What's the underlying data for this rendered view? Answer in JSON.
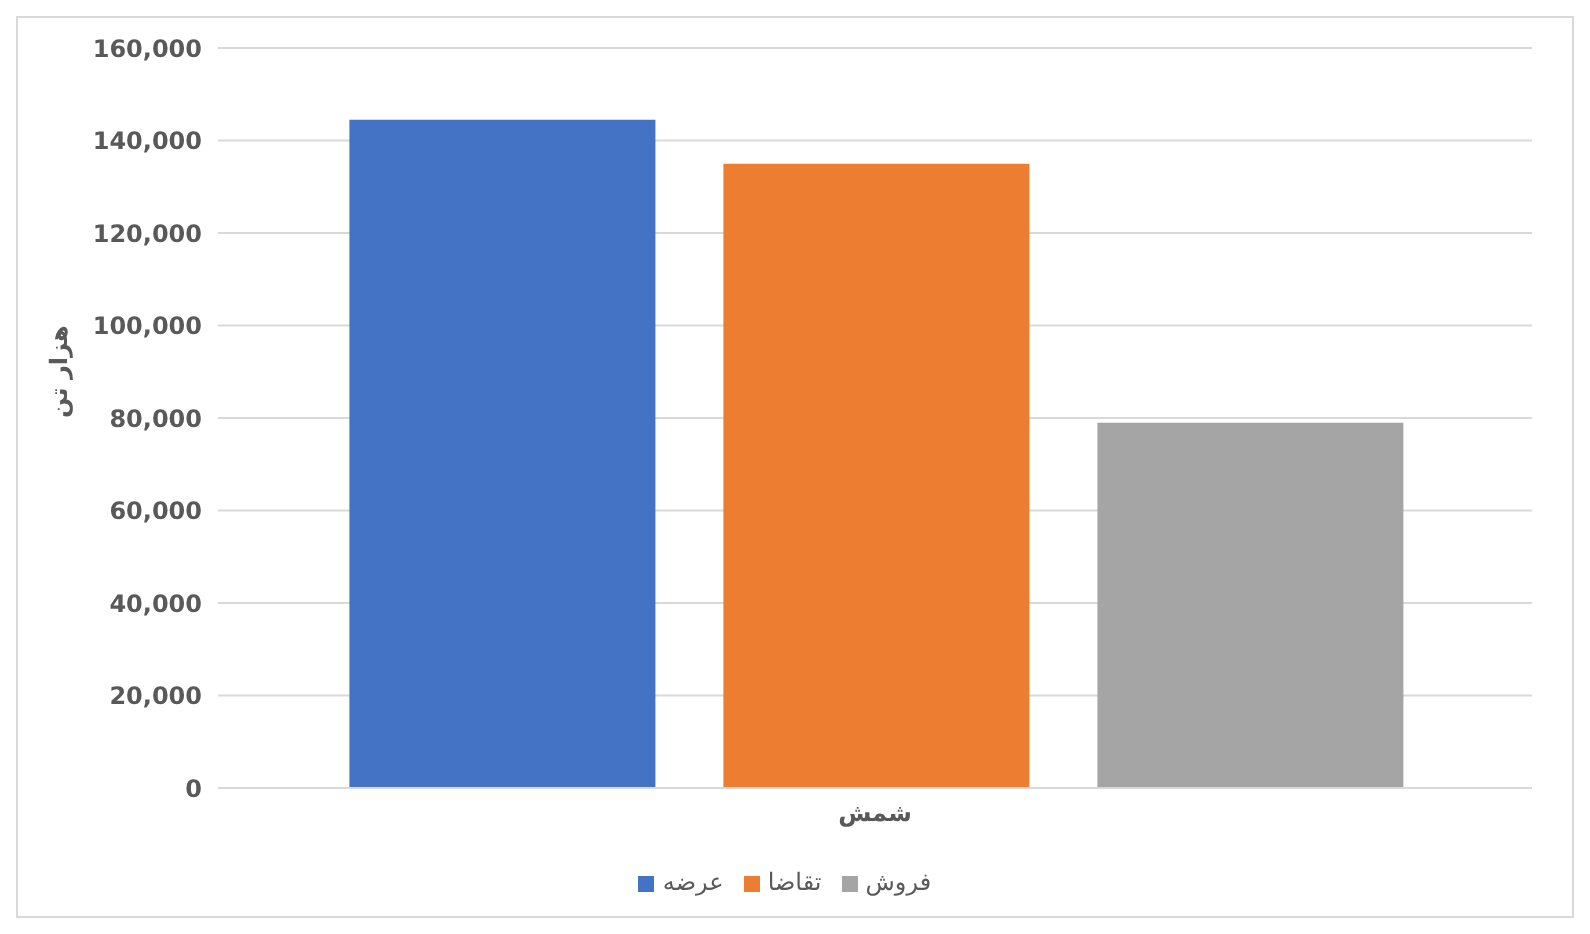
{
  "chart_data": {
    "type": "bar",
    "categories": [
      "شمش"
    ],
    "ylabel": "هزار تن",
    "series": [
      {
        "name": "عرضه",
        "color": "#4472c4",
        "values": [
          144500
        ]
      },
      {
        "name": "تقاضا",
        "color": "#ed7d31",
        "values": [
          135000
        ]
      },
      {
        "name": "فروش",
        "color": "#a5a5a5",
        "values": [
          79000
        ]
      }
    ],
    "ylim": [
      0,
      160000
    ],
    "yticks": [
      0,
      {
        "value": 20000,
        "label": "20,000"
      },
      {
        "value": 40000,
        "label": "40,000"
      },
      {
        "value": 60000,
        "label": "60,000"
      },
      {
        "value": 80000,
        "label": "80,000"
      },
      {
        "value": 100000,
        "label": "100,000"
      },
      {
        "value": 120000,
        "label": "120,000"
      },
      {
        "value": 140000,
        "label": "140,000"
      },
      {
        "value": 160000,
        "label": "160,000"
      }
    ],
    "grid": "y",
    "legend": "bottom"
  }
}
